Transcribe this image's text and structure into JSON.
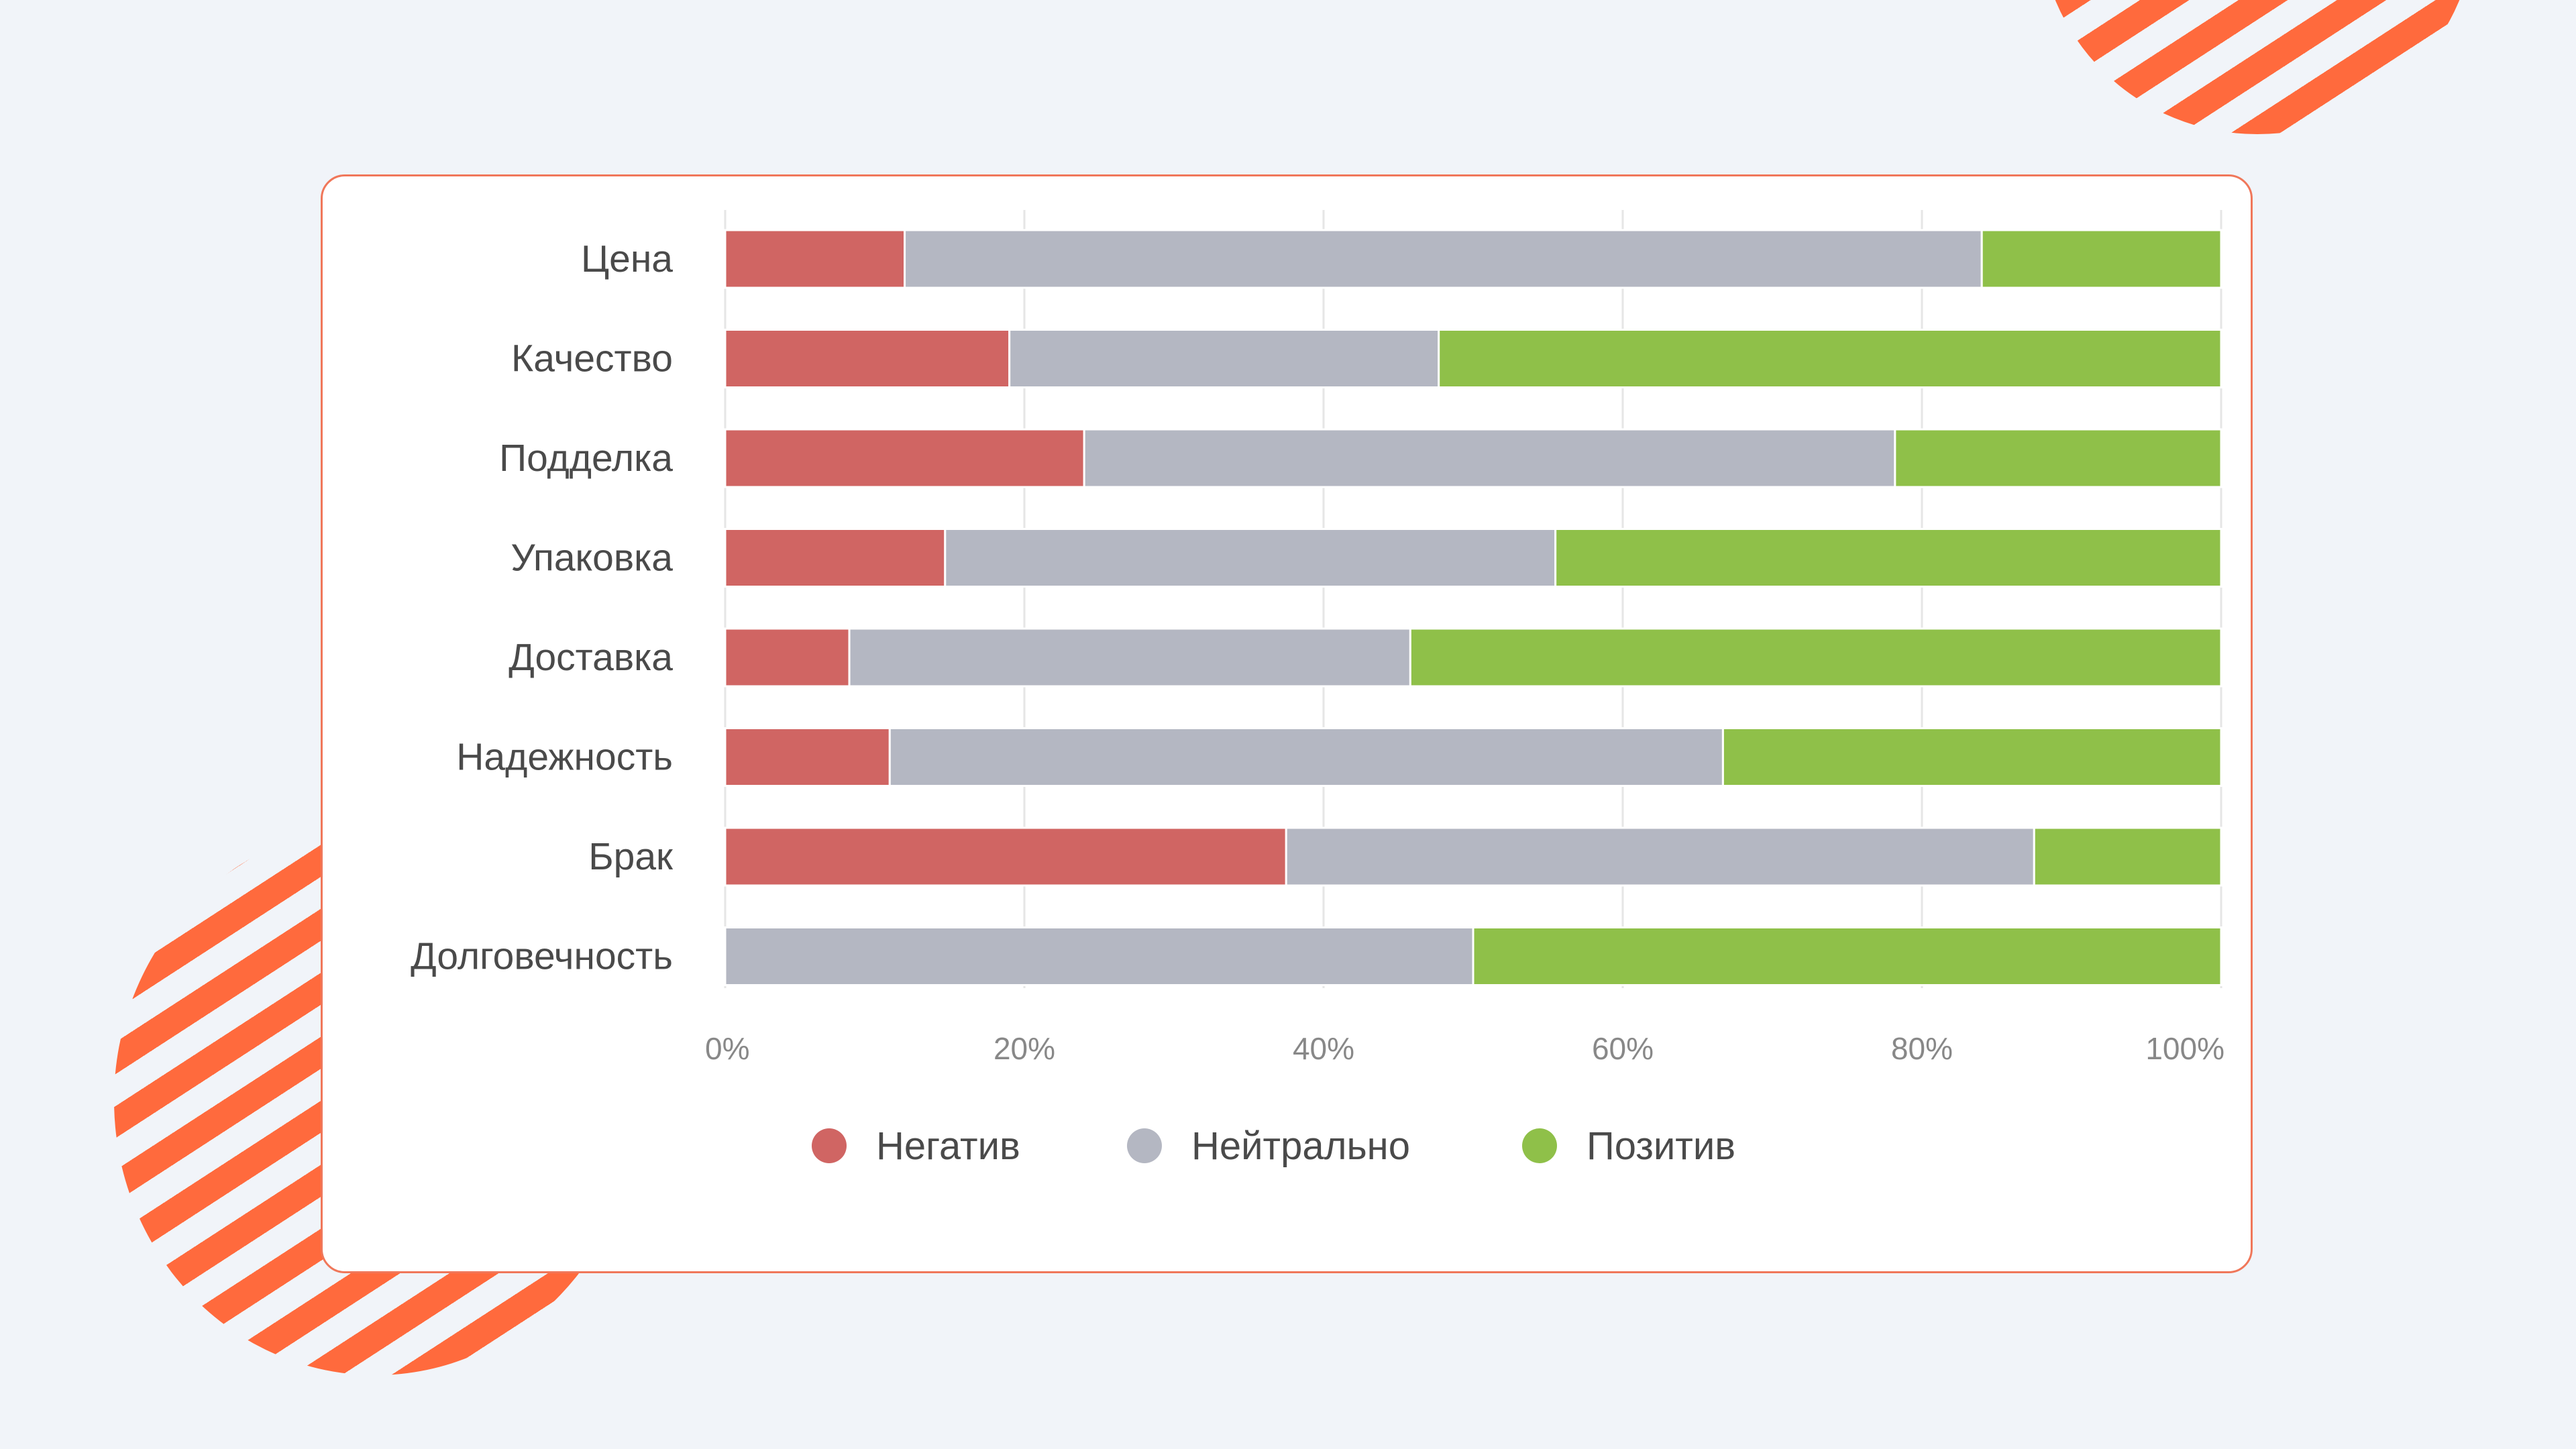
{
  "colors": {
    "background": "#f1f4f9",
    "card_border": "#f0775a",
    "decoration": "#ff6a3d"
  },
  "chart_data": {
    "type": "bar",
    "orientation": "horizontal",
    "stacked": "percent",
    "categories": [
      "Цена",
      "Качество",
      "Подделка",
      "Упаковка",
      "Доставка",
      "Надежность",
      "Брак",
      "Долговечность"
    ],
    "series": [
      {
        "name": "Негатив",
        "color": "#d06563",
        "values": [
          12,
          19,
          24,
          14.7,
          8.3,
          11,
          37.5,
          0
        ]
      },
      {
        "name": "Нейтрально",
        "color": "#b4b7c2",
        "values": [
          72,
          28.7,
          54.2,
          40.8,
          37.5,
          55.7,
          50,
          50
        ]
      },
      {
        "name": "Позитив",
        "color": "#8fc049",
        "values": [
          16,
          52.3,
          21.8,
          44.5,
          54.2,
          33.3,
          12.5,
          50
        ]
      }
    ],
    "x_ticks": [
      "0%",
      "20%",
      "40%",
      "60%",
      "80%",
      "100%"
    ],
    "xlim": [
      0,
      100
    ],
    "grid": true,
    "legend": "bottom-center"
  }
}
